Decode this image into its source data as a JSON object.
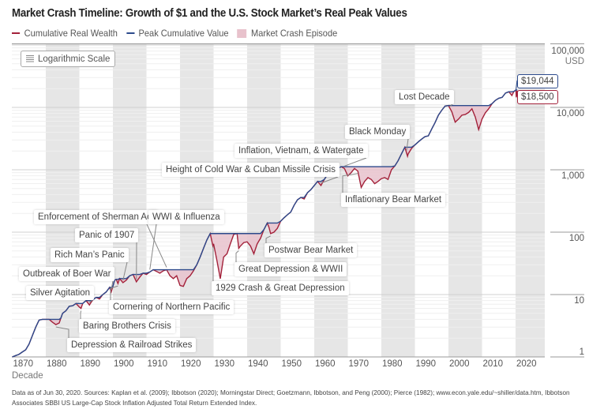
{
  "title": "Market Crash Timeline: Growth of $1 and the U.S. Stock Market’s Real Peak Values",
  "legend": {
    "wealth": "Cumulative Real Wealth",
    "peak": "Peak Cumulative Value",
    "crash": "Market Crash Episode"
  },
  "scale_button": "Logarithmic Scale",
  "colors": {
    "wealth": "#a3213a",
    "peak": "#2c4a8c",
    "crash": "#e8c2cc",
    "band": "#e6e6e6"
  },
  "footnote": "Data as of Jun 30, 2020. Sources: Kaplan et al. (2009); Ibbotson (2020); Morningstar Direct; Goetzmann, Ibbotson, and Peng (2000); Pierce (1982); www.econ.yale.edu/~shiller/data.htm, Ibbotson Associates SBBI US Large-Cap Stock Inflation Adjusted Total Return Extended Index.",
  "chart_data": {
    "type": "line",
    "title": "Market Crash Timeline: Growth of $1 and the U.S. Stock Market’s Real Peak Values",
    "xlabel": "Decade",
    "ylabel": "USD",
    "y_scale": "log",
    "ylim": [
      1,
      100000
    ],
    "xlim": [
      1870,
      2028
    ],
    "x_ticks": [
      "1870",
      "1880",
      "1890",
      "1900",
      "1910",
      "1920",
      "1930",
      "1940",
      "1950",
      "1960",
      "1970",
      "1980",
      "1990",
      "2000",
      "2010",
      "2020"
    ],
    "y_ticks": [
      "100,000",
      "10,000",
      "1,000",
      "100",
      "10",
      "1"
    ],
    "y_unit": "USD",
    "legend_position": "top-left",
    "grid": true,
    "series": [
      {
        "name": "Cumulative Real Wealth",
        "x": [
          1870,
          1871,
          1872,
          1873,
          1874,
          1875,
          1876,
          1877,
          1878,
          1879,
          1880,
          1881,
          1882,
          1883,
          1884,
          1884.5,
          1885,
          1886,
          1887,
          1888,
          1889,
          1890,
          1890.5,
          1891,
          1892,
          1893,
          1893.5,
          1894,
          1895,
          1896,
          1897,
          1898,
          1899,
          1899.5,
          1900,
          1900.5,
          1901,
          1901.5,
          1902,
          1903,
          1904,
          1905,
          1906,
          1907,
          1908,
          1909,
          1910,
          1911,
          1912,
          1913,
          1914,
          1915,
          1916,
          1917,
          1918,
          1919,
          1920,
          1921,
          1922,
          1923,
          1924,
          1925,
          1926,
          1927,
          1928,
          1929,
          1929.8,
          1930,
          1931,
          1932,
          1933,
          1934,
          1935,
          1936,
          1937,
          1937.5,
          1938,
          1939,
          1940,
          1941,
          1942,
          1943,
          1944,
          1945,
          1946,
          1946.5,
          1947,
          1948,
          1949,
          1950,
          1951,
          1952,
          1953,
          1954,
          1955,
          1956,
          1957,
          1958,
          1959,
          1960,
          1961,
          1962,
          1963,
          1964,
          1965,
          1966,
          1967,
          1968,
          1969,
          1970,
          1971,
          1972,
          1973,
          1974,
          1975,
          1976,
          1977,
          1978,
          1979,
          1980,
          1981,
          1982,
          1983,
          1984,
          1985,
          1986,
          1987,
          1987.8,
          1988,
          1989,
          1990,
          1991,
          1992,
          1993,
          1994,
          1995,
          1996,
          1997,
          1998,
          1999,
          2000,
          2001,
          2002,
          2003,
          2004,
          2005,
          2006,
          2007,
          2008,
          2009,
          2010,
          2011,
          2012,
          2013,
          2014,
          2015,
          2016,
          2017,
          2018,
          2018.9,
          2019.5,
          2020.1,
          2020.2,
          2020.5
        ],
        "y": [
          1,
          1.05,
          1.1,
          1.2,
          1.3,
          1.6,
          2.2,
          3.0,
          3.9,
          4.0,
          4.0,
          4.0,
          3.6,
          3.3,
          3.5,
          4.2,
          5.0,
          5.5,
          6.5,
          6.6,
          7.2,
          6.3,
          6.0,
          7.2,
          8.0,
          6.8,
          7.5,
          8.2,
          9.0,
          8.5,
          10,
          11,
          13,
          11,
          13.5,
          17,
          17.5,
          15,
          18,
          15.5,
          17,
          20,
          21,
          16,
          19,
          22,
          21,
          23,
          25,
          23.5,
          22,
          24,
          25,
          20,
          18,
          20,
          14,
          13.5,
          18,
          20,
          24,
          30,
          40,
          55,
          75,
          95,
          60,
          65,
          35,
          18,
          40,
          45,
          65,
          92,
          95,
          55,
          60,
          68,
          70,
          60,
          45,
          65,
          80,
          110,
          140,
          120,
          95,
          100,
          115,
          150,
          170,
          190,
          210,
          270,
          330,
          360,
          340,
          430,
          480,
          560,
          650,
          560,
          700,
          850,
          950,
          870,
          1050,
          1120,
          1050,
          800,
          900,
          1050,
          950,
          520,
          650,
          750,
          700,
          600,
          650,
          720,
          750,
          700,
          1000,
          1150,
          1400,
          1800,
          2300,
          1650,
          1800,
          2200,
          2500,
          2800,
          3100,
          3400,
          3500,
          4500,
          5700,
          7500,
          9000,
          10500,
          10700,
          8500,
          5800,
          6500,
          7500,
          7700,
          8300,
          9500,
          7000,
          4400,
          6500,
          8200,
          9500,
          11500,
          13000,
          14000,
          14500,
          17000,
          17800,
          15500,
          18000,
          19044,
          14500,
          18500
        ]
      },
      {
        "name": "Peak Cumulative Value"
      }
    ],
    "value_labels": {
      "peak": "$19,044",
      "current": "$18,500"
    },
    "annotations": [
      {
        "label": "Depression & Railroad Strikes",
        "year": 1883
      },
      {
        "label": "Baring Brothers Crisis",
        "year": 1890.5
      },
      {
        "label": "Silver Agitation",
        "year": 1893
      },
      {
        "label": "Outbreak of Boer War",
        "year": 1899.5
      },
      {
        "label": "Cornering of Northern Pacific",
        "year": 1901.5
      },
      {
        "label": "Rich Man’s Panic",
        "year": 1903
      },
      {
        "label": "Panic of 1907",
        "year": 1907
      },
      {
        "label": "Enforcement of Sherman Act",
        "year": 1911
      },
      {
        "label": "WWI & Influenza",
        "year": 1916
      },
      {
        "label": "1929 Crash & Great Depression",
        "year": 1930
      },
      {
        "label": "Great Depression & WWII",
        "year": 1937.5
      },
      {
        "label": "Postwar Bear Market",
        "year": 1947
      },
      {
        "label": "Height of Cold War & Cuban Missile Crisis",
        "year": 1962
      },
      {
        "label": "Inflation, Vietnam, & Watergate",
        "year": 1969
      },
      {
        "label": "Inflationary Bear Market",
        "year": 1973
      },
      {
        "label": "Black Monday",
        "year": 1987.5
      },
      {
        "label": "Lost Decade",
        "year": 2000.5
      }
    ]
  }
}
